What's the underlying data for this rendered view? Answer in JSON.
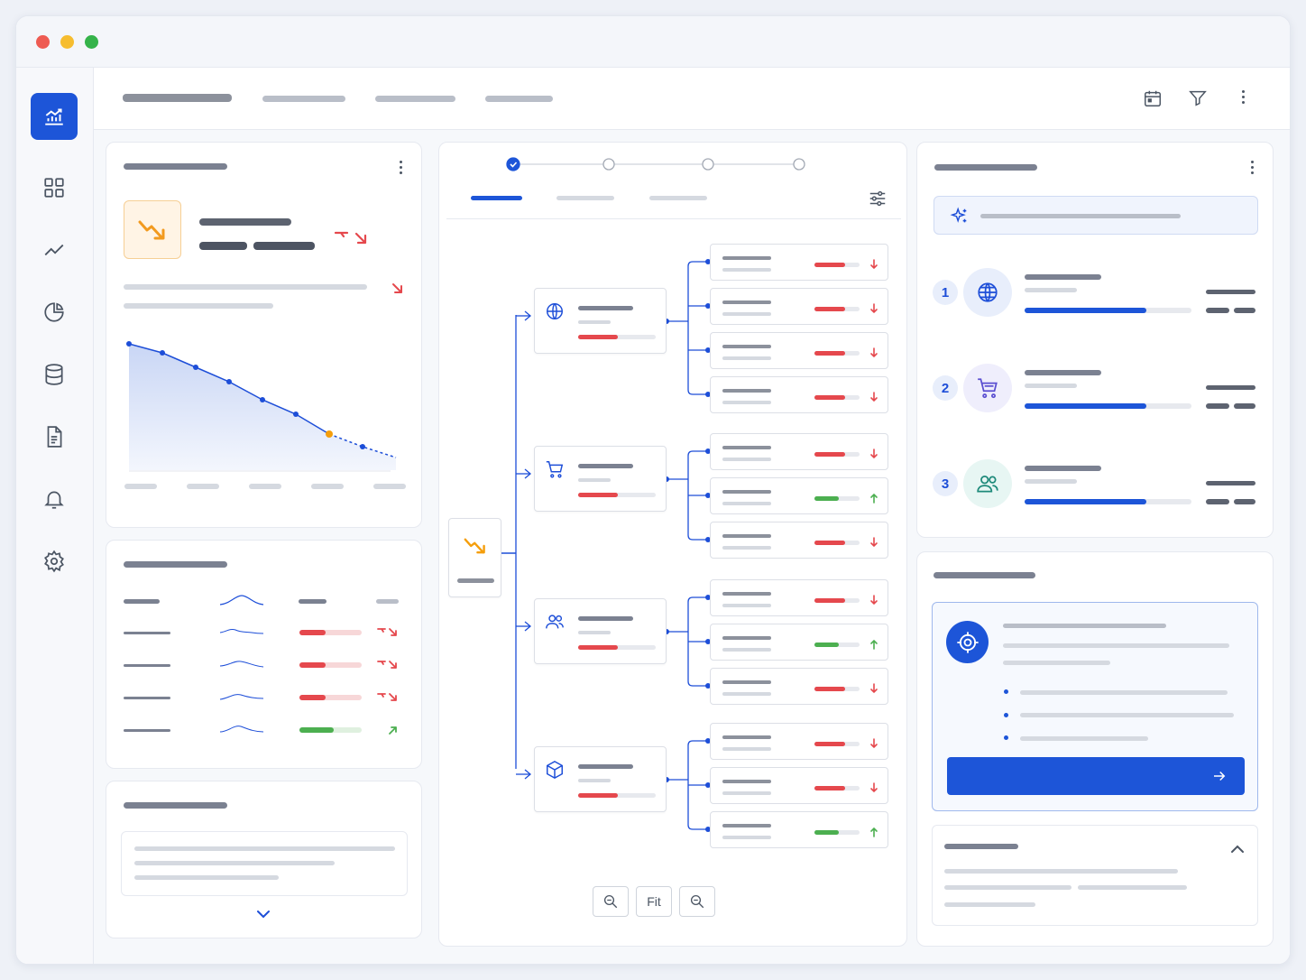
{
  "window": {
    "controls": [
      "close",
      "minimize",
      "maximize"
    ]
  },
  "colors": {
    "accent": "#1d55d8",
    "up": "#4caf50",
    "down": "#e5484d",
    "warning": "#f59e0b",
    "line": "#1d4ed8"
  },
  "sidebar": {
    "items": [
      {
        "icon": "analytics-icon",
        "active": true
      },
      {
        "icon": "grid-icon"
      },
      {
        "icon": "trend-line-icon"
      },
      {
        "icon": "pie-chart-icon"
      },
      {
        "icon": "database-icon"
      },
      {
        "icon": "document-icon"
      },
      {
        "icon": "bell-icon"
      },
      {
        "icon": "gear-icon"
      }
    ]
  },
  "topbar": {
    "actions": [
      "calendar-icon",
      "filter-icon",
      "more-icon"
    ]
  },
  "flow": {
    "steps": 4,
    "active_step": 1,
    "root_icon": "trend-down-icon",
    "groups": [
      {
        "icon": "globe-icon",
        "leaves": [
          "down",
          "down",
          "down",
          "down"
        ]
      },
      {
        "icon": "cart-icon",
        "leaves": [
          "down",
          "up",
          "down"
        ]
      },
      {
        "icon": "users-icon",
        "leaves": [
          "down",
          "up",
          "down"
        ]
      },
      {
        "icon": "box-icon",
        "leaves": [
          "down",
          "down",
          "up"
        ]
      }
    ],
    "zoom": {
      "fit_label": "Fit"
    }
  },
  "ranking": {
    "items": [
      {
        "rank": "1",
        "icon": "globe-icon",
        "progress": 0.73
      },
      {
        "rank": "2",
        "icon": "cart-icon",
        "progress": 0.73
      },
      {
        "rank": "3",
        "icon": "users-icon",
        "progress": 0.73
      }
    ]
  },
  "trend_chart": {
    "values": [
      100,
      95,
      87,
      79,
      69,
      61,
      50,
      43,
      37
    ],
    "dashed_from_index": 6,
    "highlight_index": 6
  }
}
